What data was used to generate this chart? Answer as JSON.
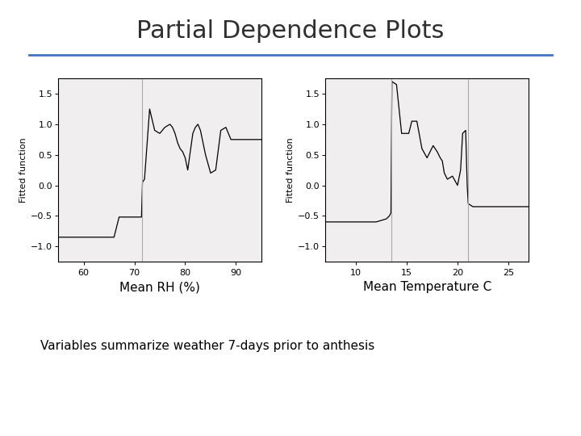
{
  "title": "Partial Dependence Plots",
  "title_fontsize": 22,
  "title_color": "#2f2f2f",
  "separator_color": "#4472c4",
  "background_color": "#ffffff",
  "subtitle": "Variables summarize weather 7-days prior to anthesis",
  "subtitle_fontsize": 11,
  "plot1_xlabel": "Mean RH (%)",
  "plot1_xlim": [
    55,
    95
  ],
  "plot1_xticks": [
    60,
    70,
    80,
    90
  ],
  "plot1_ylim": [
    -1.25,
    1.75
  ],
  "plot1_yticks": [
    -1.0,
    -0.5,
    0.0,
    0.5,
    1.0,
    1.5
  ],
  "plot1_vline": 71.5,
  "plot2_xlabel": "Mean Temperature C",
  "plot2_xlim": [
    7,
    27
  ],
  "plot2_xticks": [
    10,
    15,
    20,
    25
  ],
  "plot2_ylim": [
    -1.25,
    1.75
  ],
  "plot2_yticks": [
    -1.0,
    -0.5,
    0.0,
    0.5,
    1.0,
    1.5
  ],
  "plot2_vline1": 13.5,
  "plot2_vline2": 21.0,
  "ylabel": "Fitted function",
  "ylabel_fontsize": 8,
  "tick_fontsize": 8,
  "xlabel_fontsize": 11,
  "plot_bg_color": "#f0eeee",
  "rh_x": [
    55,
    60,
    62,
    64,
    65,
    66,
    67,
    68,
    69,
    70,
    70.5,
    71,
    71.2,
    71.4,
    71.6,
    72,
    73,
    74,
    75,
    76,
    77,
    77.5,
    78,
    78.5,
    79,
    79.5,
    80,
    80.5,
    81,
    81.5,
    82,
    82.5,
    83,
    84,
    85,
    86,
    87,
    88,
    89,
    90,
    91,
    92,
    95
  ],
  "rh_y": [
    -0.85,
    -0.85,
    -0.85,
    -0.85,
    -0.85,
    -0.85,
    -0.52,
    -0.52,
    -0.52,
    -0.52,
    -0.52,
    -0.52,
    -0.52,
    -0.52,
    0.05,
    0.1,
    1.25,
    0.9,
    0.85,
    0.95,
    1.0,
    0.95,
    0.85,
    0.7,
    0.6,
    0.55,
    0.45,
    0.25,
    0.55,
    0.85,
    0.95,
    1.0,
    0.9,
    0.5,
    0.2,
    0.25,
    0.9,
    0.95,
    0.75,
    0.75,
    0.75,
    0.75,
    0.75
  ],
  "temp_x": [
    7,
    8,
    9,
    10,
    11,
    12,
    13,
    13.3,
    13.45,
    13.55,
    14,
    14.5,
    15,
    15.2,
    15.5,
    16,
    16.5,
    17,
    17.3,
    17.6,
    18,
    18.3,
    18.5,
    18.7,
    19,
    19.5,
    20,
    20.3,
    20.5,
    20.8,
    20.95,
    21.05,
    21.5,
    22,
    23,
    24,
    25,
    26,
    27
  ],
  "temp_y": [
    -0.6,
    -0.6,
    -0.6,
    -0.6,
    -0.6,
    -0.6,
    -0.55,
    -0.5,
    -0.45,
    1.7,
    1.65,
    0.85,
    0.85,
    0.85,
    1.05,
    1.05,
    0.6,
    0.45,
    0.55,
    0.65,
    0.55,
    0.45,
    0.4,
    0.2,
    0.1,
    0.15,
    0.0,
    0.25,
    0.85,
    0.9,
    0.0,
    -0.3,
    -0.35,
    -0.35,
    -0.35,
    -0.35,
    -0.35,
    -0.35,
    -0.35
  ]
}
